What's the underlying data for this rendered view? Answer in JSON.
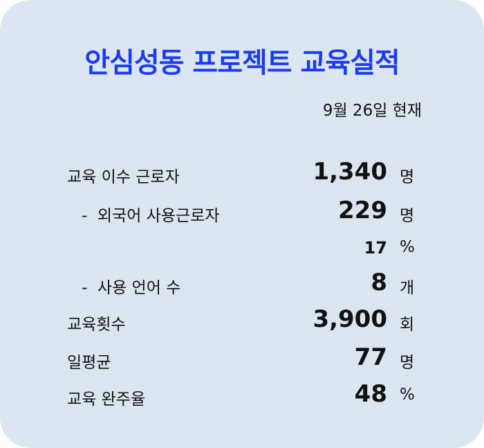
{
  "title": "안심성동 프로젝트 교육실적",
  "date": "9월 26일 현재",
  "colors": {
    "title": "#1a3cf5",
    "background": "#dce6f0"
  },
  "rows": [
    {
      "label": "교육 이수 근로자",
      "value": "1,340",
      "unit": "명"
    },
    {
      "label": "-  외국어 사용근로자",
      "value": "229",
      "unit": "명"
    },
    {
      "label": "",
      "value": "17",
      "unit": "%"
    },
    {
      "label": "-  사용 언어 수",
      "value": "8",
      "unit": "개"
    },
    {
      "label": "교육횟수",
      "value": "3,900",
      "unit": "회"
    },
    {
      "label": "일평균",
      "value": "77",
      "unit": "명"
    },
    {
      "label": "교육 완주율",
      "value": "48",
      "unit": "%"
    }
  ]
}
